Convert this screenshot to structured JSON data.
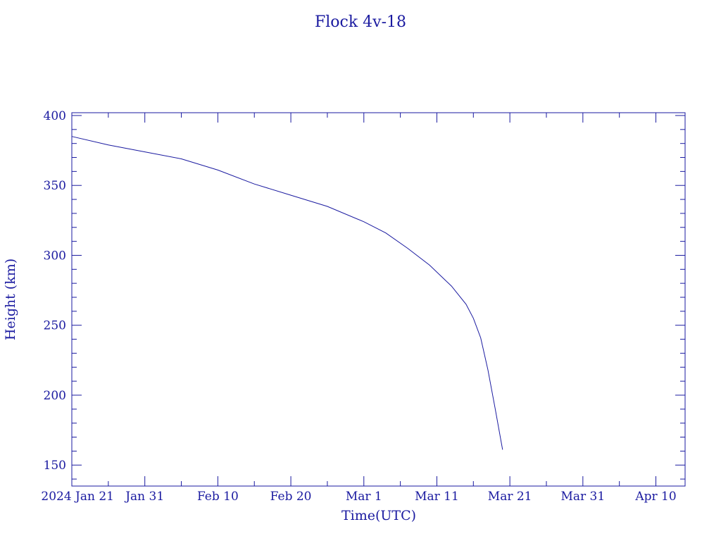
{
  "chart_data": {
    "type": "line",
    "title": "Flock 4v-18",
    "xlabel": "Time(UTC)",
    "ylabel": "Height (km)",
    "colors": {
      "axes": "#1a1aa0",
      "line": "#1a1aa0",
      "background": "#ffffff"
    },
    "grid": false,
    "x_range": [
      "2024-01-21",
      "2024-04-14"
    ],
    "ylim": [
      135,
      402
    ],
    "x_ticks": [
      {
        "date": "2024-01-21",
        "label": "2024 Jan 21"
      },
      {
        "date": "2024-01-31",
        "label": "Jan 31"
      },
      {
        "date": "2024-02-10",
        "label": "Feb 10"
      },
      {
        "date": "2024-02-20",
        "label": "Feb 20"
      },
      {
        "date": "2024-03-01",
        "label": "Mar  1"
      },
      {
        "date": "2024-03-11",
        "label": "Mar 11"
      },
      {
        "date": "2024-03-21",
        "label": "Mar 21"
      },
      {
        "date": "2024-03-31",
        "label": "Mar 31"
      },
      {
        "date": "2024-04-10",
        "label": "Apr 10"
      }
    ],
    "y_ticks": [
      150,
      200,
      250,
      300,
      350,
      400
    ],
    "series": [
      {
        "x": [
          "2024-01-21",
          "2024-01-26",
          "2024-01-31",
          "2024-02-05",
          "2024-02-10",
          "2024-02-15",
          "2024-02-20",
          "2024-02-25",
          "2024-03-01",
          "2024-03-04",
          "2024-03-07",
          "2024-03-10",
          "2024-03-13",
          "2024-03-15",
          "2024-03-16",
          "2024-03-17",
          "2024-03-18",
          "2024-03-19",
          "2024-03-20"
        ],
        "y": [
          385,
          379,
          374,
          369,
          361,
          351,
          343,
          335,
          324,
          316,
          305,
          293,
          278,
          265,
          255,
          241,
          218,
          190,
          161
        ]
      }
    ]
  }
}
